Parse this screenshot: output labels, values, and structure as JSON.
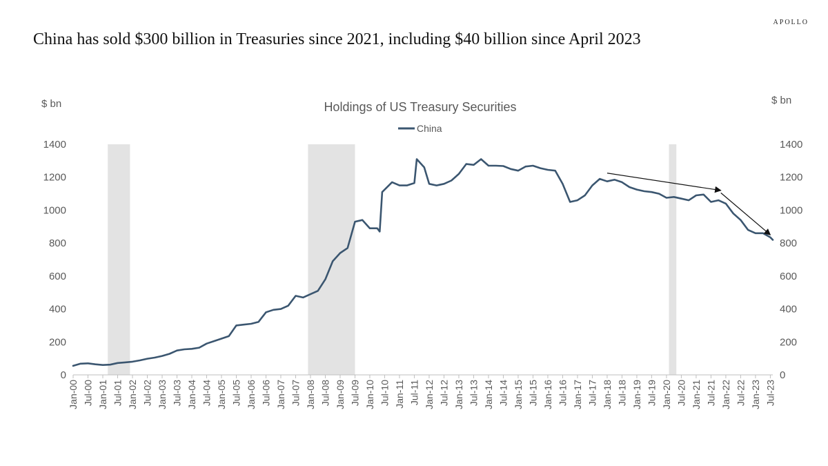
{
  "brand": "APOLLO",
  "headline": "China has sold $300 billion in Treasuries since 2021, including $40 billion since April 2023",
  "chart_data": {
    "type": "line",
    "title": "Holdings of US Treasury Securities",
    "y_unit_left": "$ bn",
    "y_unit_right": "$ bn",
    "ylim": [
      0,
      1400
    ],
    "yticks": [
      0,
      200,
      400,
      600,
      800,
      1000,
      1200,
      1400
    ],
    "legend_position": "top-center",
    "x_tick_labels": [
      "Jan-00",
      "Jul-00",
      "Jan-01",
      "Jul-01",
      "Jan-02",
      "Jul-02",
      "Jan-03",
      "Jul-03",
      "Jan-04",
      "Jul-04",
      "Jan-05",
      "Jul-05",
      "Jan-06",
      "Jul-06",
      "Jan-07",
      "Jul-07",
      "Jan-08",
      "Jul-08",
      "Jan-09",
      "Jul-09",
      "Jan-10",
      "Jul-10",
      "Jan-11",
      "Jul-11",
      "Jan-12",
      "Jul-12",
      "Jan-13",
      "Jul-13",
      "Jan-14",
      "Jul-14",
      "Jan-15",
      "Jul-15",
      "Jan-16",
      "Jul-16",
      "Jan-17",
      "Jul-17",
      "Jan-18",
      "Jul-18",
      "Jan-19",
      "Jul-19",
      "Jan-20",
      "Jul-20",
      "Jan-21",
      "Jul-21",
      "Jan-22",
      "Jul-22",
      "Jan-23",
      "Jul-23"
    ],
    "shaded_periods": [
      {
        "start": "2001-03",
        "end": "2001-11"
      },
      {
        "start": "2007-12",
        "end": "2009-06"
      },
      {
        "start": "2020-02",
        "end": "2020-04"
      }
    ],
    "annotation_arrows": [
      {
        "from": {
          "x": "2018-01",
          "y": 1225
        },
        "to": {
          "x": "2021-11",
          "y": 1120
        }
      },
      {
        "from": {
          "x": "2021-11",
          "y": 1105
        },
        "to": {
          "x": "2023-07",
          "y": 850
        }
      }
    ],
    "series": [
      {
        "name": "China",
        "color": "#3b5670",
        "points": [
          [
            "2000-01",
            55
          ],
          [
            "2000-04",
            68
          ],
          [
            "2000-07",
            70
          ],
          [
            "2000-10",
            64
          ],
          [
            "2001-01",
            60
          ],
          [
            "2001-04",
            62
          ],
          [
            "2001-07",
            72
          ],
          [
            "2001-10",
            76
          ],
          [
            "2002-01",
            80
          ],
          [
            "2002-04",
            88
          ],
          [
            "2002-07",
            98
          ],
          [
            "2002-10",
            105
          ],
          [
            "2003-01",
            115
          ],
          [
            "2003-04",
            128
          ],
          [
            "2003-07",
            148
          ],
          [
            "2003-10",
            155
          ],
          [
            "2004-01",
            158
          ],
          [
            "2004-04",
            165
          ],
          [
            "2004-07",
            190
          ],
          [
            "2004-10",
            205
          ],
          [
            "2005-01",
            220
          ],
          [
            "2005-04",
            235
          ],
          [
            "2005-07",
            300
          ],
          [
            "2005-10",
            305
          ],
          [
            "2006-01",
            310
          ],
          [
            "2006-04",
            322
          ],
          [
            "2006-07",
            380
          ],
          [
            "2006-10",
            395
          ],
          [
            "2007-01",
            400
          ],
          [
            "2007-04",
            420
          ],
          [
            "2007-07",
            480
          ],
          [
            "2007-10",
            470
          ],
          [
            "2008-01",
            490
          ],
          [
            "2008-04",
            510
          ],
          [
            "2008-07",
            580
          ],
          [
            "2008-10",
            690
          ],
          [
            "2009-01",
            740
          ],
          [
            "2009-04",
            770
          ],
          [
            "2009-07",
            930
          ],
          [
            "2009-10",
            940
          ],
          [
            "2010-01",
            890
          ],
          [
            "2010-04",
            890
          ],
          [
            "2010-05",
            870
          ],
          [
            "2010-06",
            1110
          ],
          [
            "2010-10",
            1170
          ],
          [
            "2011-01",
            1150
          ],
          [
            "2011-04",
            1150
          ],
          [
            "2011-07",
            1165
          ],
          [
            "2011-08",
            1310
          ],
          [
            "2011-11",
            1260
          ],
          [
            "2012-01",
            1160
          ],
          [
            "2012-04",
            1150
          ],
          [
            "2012-07",
            1160
          ],
          [
            "2012-10",
            1180
          ],
          [
            "2013-01",
            1220
          ],
          [
            "2013-04",
            1280
          ],
          [
            "2013-07",
            1275
          ],
          [
            "2013-10",
            1310
          ],
          [
            "2014-01",
            1270
          ],
          [
            "2014-04",
            1270
          ],
          [
            "2014-07",
            1268
          ],
          [
            "2014-10",
            1250
          ],
          [
            "2015-01",
            1240
          ],
          [
            "2015-04",
            1265
          ],
          [
            "2015-07",
            1270
          ],
          [
            "2015-10",
            1255
          ],
          [
            "2016-01",
            1245
          ],
          [
            "2016-04",
            1240
          ],
          [
            "2016-07",
            1160
          ],
          [
            "2016-10",
            1050
          ],
          [
            "2017-01",
            1060
          ],
          [
            "2017-04",
            1090
          ],
          [
            "2017-07",
            1150
          ],
          [
            "2017-10",
            1190
          ],
          [
            "2018-01",
            1175
          ],
          [
            "2018-04",
            1185
          ],
          [
            "2018-07",
            1170
          ],
          [
            "2018-10",
            1140
          ],
          [
            "2019-01",
            1125
          ],
          [
            "2019-04",
            1115
          ],
          [
            "2019-07",
            1110
          ],
          [
            "2019-10",
            1100
          ],
          [
            "2020-01",
            1075
          ],
          [
            "2020-04",
            1080
          ],
          [
            "2020-07",
            1070
          ],
          [
            "2020-10",
            1060
          ],
          [
            "2021-01",
            1090
          ],
          [
            "2021-04",
            1095
          ],
          [
            "2021-07",
            1050
          ],
          [
            "2021-10",
            1060
          ],
          [
            "2022-01",
            1040
          ],
          [
            "2022-04",
            980
          ],
          [
            "2022-07",
            940
          ],
          [
            "2022-10",
            880
          ],
          [
            "2023-01",
            860
          ],
          [
            "2023-04",
            860
          ],
          [
            "2023-07",
            835
          ],
          [
            "2023-08",
            820
          ]
        ]
      }
    ]
  }
}
